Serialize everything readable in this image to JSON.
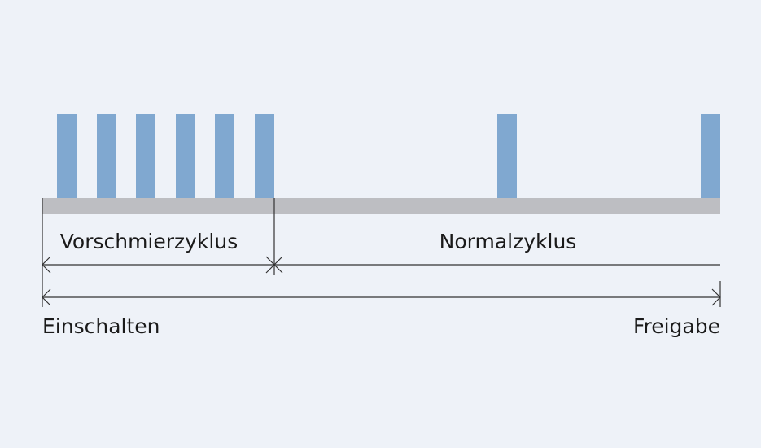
{
  "diagram": {
    "phases": [
      "Vorschmierzyklus",
      "Normalzyklus"
    ],
    "start": "Einschalten",
    "end": "Freigabe"
  }
}
